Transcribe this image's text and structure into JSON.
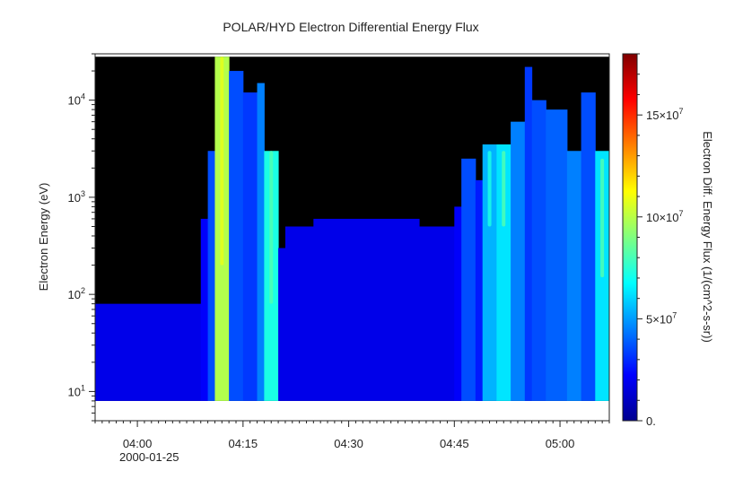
{
  "chart_data": {
    "type": "heatmap",
    "title": "POLAR/HYD  Electron Differential Energy Flux",
    "xlabel": "",
    "ylabel": "Electron Energy (eV)",
    "y_scale": "log",
    "ylim": [
      5,
      30000
    ],
    "data_y_range": [
      8,
      28000
    ],
    "x_ticks": [
      "04:00",
      "04:15",
      "04:30",
      "04:45",
      "05:00"
    ],
    "x_date_label": "2000-01-25",
    "x_range": [
      "03:54",
      "05:07"
    ],
    "y_ticks": [
      {
        "base": "10",
        "exp": "1",
        "value": 10
      },
      {
        "base": "10",
        "exp": "2",
        "value": 100
      },
      {
        "base": "10",
        "exp": "3",
        "value": 1000
      },
      {
        "base": "10",
        "exp": "4",
        "value": 10000
      }
    ],
    "colorbar": {
      "label": "Electron Diff. Energy Flux (1/(cm^2-s-sr))",
      "min": 0,
      "max": 180000000,
      "colormap": "jet",
      "ticks": [
        {
          "text": "0.",
          "value": 0
        },
        {
          "text": "5×10",
          "exp": "7",
          "value": 50000000
        },
        {
          "text": "10×10",
          "exp": "7",
          "value": 100000000
        },
        {
          "text": "15×10",
          "exp": "7",
          "value": 150000000
        }
      ]
    },
    "background_color": "#000000",
    "segments": [
      {
        "start": "03:54",
        "end": "04:09",
        "top_ev": 80,
        "level": 0.1
      },
      {
        "start": "04:09",
        "end": "04:10",
        "top_ev": 600,
        "level": 0.12
      },
      {
        "start": "04:10",
        "end": "04:11",
        "top_ev": 3000,
        "level": 0.2
      },
      {
        "start": "04:11",
        "end": "04:13",
        "top_ev": 28000,
        "level": 0.55
      },
      {
        "start": "04:13",
        "end": "04:15",
        "top_ev": 20000,
        "level": 0.2
      },
      {
        "start": "04:15",
        "end": "04:17",
        "top_ev": 12000,
        "level": 0.18
      },
      {
        "start": "04:17",
        "end": "04:18",
        "top_ev": 15000,
        "level": 0.25
      },
      {
        "start": "04:18",
        "end": "04:20",
        "top_ev": 3000,
        "level": 0.4
      },
      {
        "start": "04:20",
        "end": "04:21",
        "top_ev": 300,
        "level": 0.1
      },
      {
        "start": "04:21",
        "end": "04:25",
        "top_ev": 500,
        "level": 0.1
      },
      {
        "start": "04:25",
        "end": "04:40",
        "top_ev": 600,
        "level": 0.1
      },
      {
        "start": "04:40",
        "end": "04:45",
        "top_ev": 500,
        "level": 0.1
      },
      {
        "start": "04:45",
        "end": "04:46",
        "top_ev": 800,
        "level": 0.12
      },
      {
        "start": "04:46",
        "end": "04:48",
        "top_ev": 2500,
        "level": 0.2
      },
      {
        "start": "04:48",
        "end": "04:49",
        "top_ev": 1500,
        "level": 0.15
      },
      {
        "start": "04:49",
        "end": "04:51",
        "top_ev": 3500,
        "level": 0.3
      },
      {
        "start": "04:51",
        "end": "04:53",
        "top_ev": 3500,
        "level": 0.35
      },
      {
        "start": "04:53",
        "end": "04:55",
        "top_ev": 6000,
        "level": 0.25
      },
      {
        "start": "04:55",
        "end": "04:56",
        "top_ev": 22000,
        "level": 0.18
      },
      {
        "start": "04:56",
        "end": "04:58",
        "top_ev": 10000,
        "level": 0.2
      },
      {
        "start": "04:58",
        "end": "05:01",
        "top_ev": 8000,
        "level": 0.22
      },
      {
        "start": "05:01",
        "end": "05:03",
        "top_ev": 3000,
        "level": 0.25
      },
      {
        "start": "05:03",
        "end": "05:05",
        "top_ev": 12000,
        "level": 0.2
      },
      {
        "start": "05:05",
        "end": "05:07",
        "top_ev": 3000,
        "level": 0.35
      }
    ],
    "bright_streaks": [
      {
        "time": "04:12",
        "top_ev": 28000,
        "bottom_ev": 200,
        "level": 0.6
      },
      {
        "time": "04:19",
        "top_ev": 3000,
        "bottom_ev": 80,
        "level": 0.45
      },
      {
        "time": "04:50",
        "top_ev": 3000,
        "bottom_ev": 500,
        "level": 0.4
      },
      {
        "time": "04:52",
        "top_ev": 3000,
        "bottom_ev": 500,
        "level": 0.45
      },
      {
        "time": "05:06",
        "top_ev": 2500,
        "bottom_ev": 150,
        "level": 0.45
      }
    ]
  }
}
